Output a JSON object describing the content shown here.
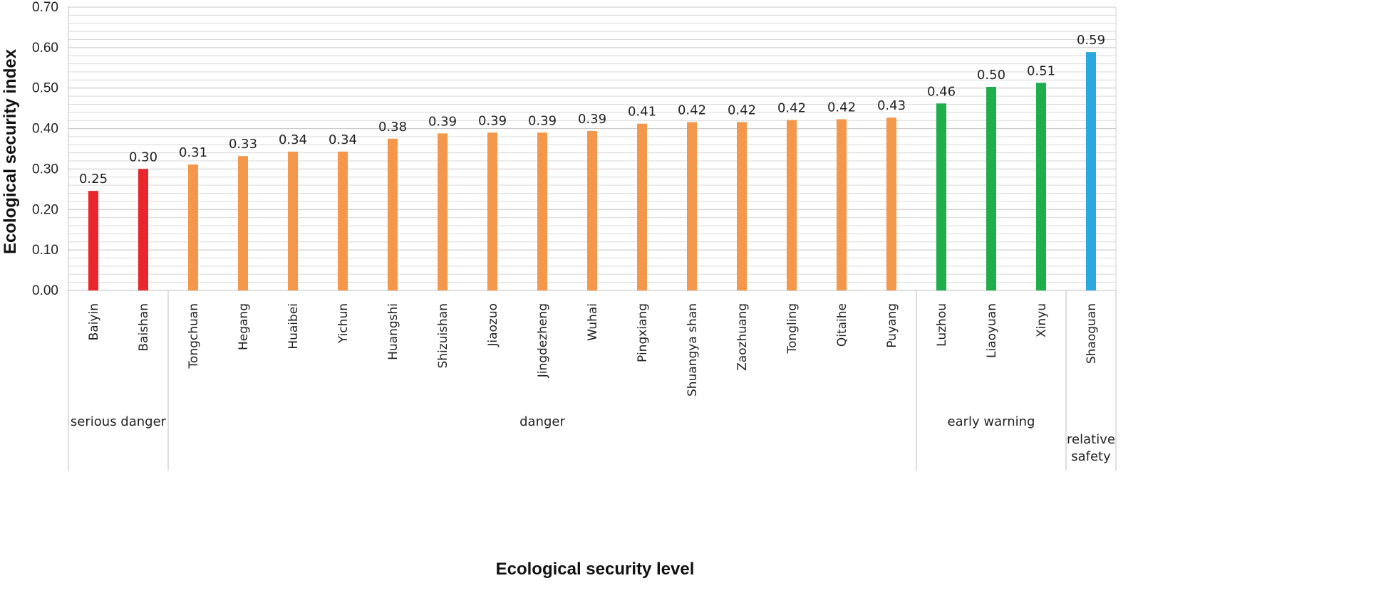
{
  "chart_data": {
    "type": "bar",
    "title": "",
    "ylabel": "Ecological security index",
    "xlabel": "Ecological security level",
    "ylim": [
      0,
      0.7
    ],
    "ytick_step": 0.1,
    "ytick_labels": [
      "0.00",
      "0.10",
      "0.20",
      "0.30",
      "0.40",
      "0.50",
      "0.60",
      "0.70"
    ],
    "minor_grid_step": 0.02,
    "grid": true,
    "categories": [
      "Baiyin",
      "Baishan",
      "Tongchuan",
      "Hegang",
      "Huaibei",
      "Yichun",
      "Huangshi",
      "Shizuishan",
      "Jiaozuo",
      "Jingdezheng",
      "Wuhai",
      "Pingxiang",
      "Shuangya shan",
      "Zaozhuang",
      "Tongling",
      "Qitaihe",
      "Puyang",
      "Luzhou",
      "Liaoyuan",
      "Xinyu",
      "Shaoguan"
    ],
    "values": [
      0.246,
      0.3,
      0.311,
      0.332,
      0.343,
      0.343,
      0.375,
      0.388,
      0.39,
      0.39,
      0.394,
      0.412,
      0.416,
      0.416,
      0.421,
      0.423,
      0.427,
      0.462,
      0.503,
      0.513,
      0.589
    ],
    "value_labels": [
      "0.25",
      "0.30",
      "0.31",
      "0.33",
      "0.34",
      "0.34",
      "0.38",
      "0.39",
      "0.39",
      "0.39",
      "0.39",
      "0.41",
      "0.42",
      "0.42",
      "0.42",
      "0.42",
      "0.43",
      "0.46",
      "0.50",
      "0.51",
      "0.59"
    ],
    "groups": [
      {
        "label": "serious danger",
        "start": 0,
        "count": 2,
        "color": "#e8262c"
      },
      {
        "label": "danger",
        "start": 2,
        "count": 15,
        "color": "#f5974a"
      },
      {
        "label": "early warning",
        "start": 17,
        "count": 3,
        "color": "#1fae4b"
      },
      {
        "label": "relative safety",
        "label_lines": [
          "relative",
          "safety"
        ],
        "start": 20,
        "count": 1,
        "color": "#2ca8e0"
      }
    ]
  }
}
